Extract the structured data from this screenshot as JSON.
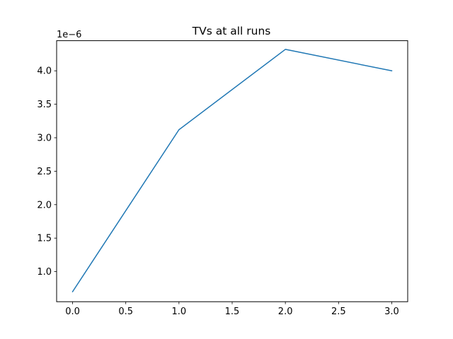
{
  "chart_data": {
    "type": "line",
    "title": "TVs at all runs",
    "xlabel": "",
    "ylabel": "",
    "y_offset_label": "1e−6",
    "xlim": [
      -0.15,
      3.15
    ],
    "ylim": [
      0.55,
      4.45
    ],
    "x_ticks": [
      0.0,
      0.5,
      1.0,
      1.5,
      2.0,
      2.5,
      3.0
    ],
    "x_tick_labels": [
      "0.0",
      "0.5",
      "1.0",
      "1.5",
      "2.0",
      "2.5",
      "3.0"
    ],
    "y_ticks": [
      1.0,
      1.5,
      2.0,
      2.5,
      3.0,
      3.5,
      4.0
    ],
    "y_tick_labels": [
      "1.0",
      "1.5",
      "2.0",
      "2.5",
      "3.0",
      "3.5",
      "4.0"
    ],
    "grid": false,
    "series": [
      {
        "color": "#1f77b4",
        "x": [
          0,
          1,
          2,
          3
        ],
        "y": [
          0.7,
          3.12,
          4.32,
          4.0
        ]
      }
    ]
  }
}
